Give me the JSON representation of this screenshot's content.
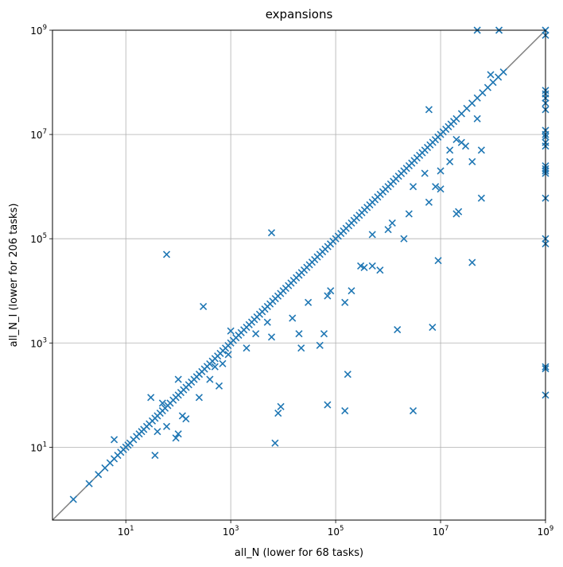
{
  "chart_data": {
    "type": "scatter",
    "title": "expansions",
    "xlabel": "all_N (lower for 68 tasks)",
    "ylabel": "all_N_I (lower for 206 tasks)",
    "xscale": "log",
    "yscale": "log",
    "xlim": [
      0.4,
      1000000000
    ],
    "ylim": [
      0.4,
      1000000000
    ],
    "grid": true,
    "marker": "x",
    "color": "#1f77b4",
    "diagonal_line": {
      "from": [
        0.4,
        0.4
      ],
      "to": [
        1000000000,
        1000000000
      ],
      "color": "#808080"
    },
    "x_ticks": [
      {
        "value": 10,
        "base": "10",
        "exp": "1"
      },
      {
        "value": 1000,
        "base": "10",
        "exp": "3"
      },
      {
        "value": 100000,
        "base": "10",
        "exp": "5"
      },
      {
        "value": 10000000,
        "base": "10",
        "exp": "7"
      },
      {
        "value": 1000000000,
        "base": "10",
        "exp": "9"
      }
    ],
    "y_ticks": [
      {
        "value": 10,
        "base": "10",
        "exp": "1"
      },
      {
        "value": 1000,
        "base": "10",
        "exp": "3"
      },
      {
        "value": 100000,
        "base": "10",
        "exp": "5"
      },
      {
        "value": 10000000,
        "base": "10",
        "exp": "7"
      },
      {
        "value": 1000000000,
        "base": "10",
        "exp": "9"
      }
    ],
    "points": [
      [
        1,
        1
      ],
      [
        2,
        2
      ],
      [
        3,
        3
      ],
      [
        4,
        4
      ],
      [
        5,
        5
      ],
      [
        6,
        6
      ],
      [
        7,
        7
      ],
      [
        8,
        8
      ],
      [
        9,
        9
      ],
      [
        10,
        10
      ],
      [
        11,
        11
      ],
      [
        12,
        12
      ],
      [
        14,
        14
      ],
      [
        16,
        16
      ],
      [
        18,
        18
      ],
      [
        20,
        20
      ],
      [
        22,
        22
      ],
      [
        25,
        25
      ],
      [
        28,
        28
      ],
      [
        32,
        32
      ],
      [
        36,
        36
      ],
      [
        40,
        40
      ],
      [
        45,
        45
      ],
      [
        50,
        50
      ],
      [
        56,
        56
      ],
      [
        63,
        63
      ],
      [
        70,
        70
      ],
      [
        80,
        80
      ],
      [
        90,
        90
      ],
      [
        100,
        100
      ],
      [
        112,
        112
      ],
      [
        126,
        126
      ],
      [
        141,
        141
      ],
      [
        158,
        158
      ],
      [
        178,
        178
      ],
      [
        200,
        200
      ],
      [
        224,
        224
      ],
      [
        251,
        251
      ],
      [
        282,
        282
      ],
      [
        316,
        316
      ],
      [
        355,
        355
      ],
      [
        398,
        398
      ],
      [
        447,
        447
      ],
      [
        501,
        501
      ],
      [
        562,
        562
      ],
      [
        631,
        631
      ],
      [
        708,
        708
      ],
      [
        794,
        794
      ],
      [
        891,
        891
      ],
      [
        1000,
        1000
      ],
      [
        1120,
        1120
      ],
      [
        1260,
        1260
      ],
      [
        1410,
        1410
      ],
      [
        1580,
        1580
      ],
      [
        1780,
        1780
      ],
      [
        2000,
        2000
      ],
      [
        2240,
        2240
      ],
      [
        2510,
        2510
      ],
      [
        2820,
        2820
      ],
      [
        3160,
        3160
      ],
      [
        3550,
        3550
      ],
      [
        3980,
        3980
      ],
      [
        4470,
        4470
      ],
      [
        5010,
        5010
      ],
      [
        5620,
        5620
      ],
      [
        6310,
        6310
      ],
      [
        7080,
        7080
      ],
      [
        7940,
        7940
      ],
      [
        8910,
        8910
      ],
      [
        10000,
        10000
      ],
      [
        11200,
        11200
      ],
      [
        12600,
        12600
      ],
      [
        14100,
        14100
      ],
      [
        15800,
        15800
      ],
      [
        17800,
        17800
      ],
      [
        20000,
        20000
      ],
      [
        22400,
        22400
      ],
      [
        25100,
        25100
      ],
      [
        28200,
        28200
      ],
      [
        31600,
        31600
      ],
      [
        35500,
        35500
      ],
      [
        39800,
        39800
      ],
      [
        44700,
        44700
      ],
      [
        50100,
        50100
      ],
      [
        56200,
        56200
      ],
      [
        63100,
        63100
      ],
      [
        70800,
        70800
      ],
      [
        79400,
        79400
      ],
      [
        89100,
        89100
      ],
      [
        100000,
        100000
      ],
      [
        112000,
        112000
      ],
      [
        126000,
        126000
      ],
      [
        141000,
        141000
      ],
      [
        158000,
        158000
      ],
      [
        178000,
        178000
      ],
      [
        200000,
        200000
      ],
      [
        224000,
        224000
      ],
      [
        251000,
        251000
      ],
      [
        282000,
        282000
      ],
      [
        316000,
        316000
      ],
      [
        355000,
        355000
      ],
      [
        398000,
        398000
      ],
      [
        447000,
        447000
      ],
      [
        501000,
        501000
      ],
      [
        562000,
        562000
      ],
      [
        631000,
        631000
      ],
      [
        708000,
        708000
      ],
      [
        794000,
        794000
      ],
      [
        891000,
        891000
      ],
      [
        1000000,
        1000000
      ],
      [
        1120000,
        1120000
      ],
      [
        1260000,
        1260000
      ],
      [
        1410000,
        1410000
      ],
      [
        1580000,
        1580000
      ],
      [
        1780000,
        1780000
      ],
      [
        2000000,
        2000000
      ],
      [
        2240000,
        2240000
      ],
      [
        2510000,
        2510000
      ],
      [
        2820000,
        2820000
      ],
      [
        3160000,
        3160000
      ],
      [
        3550000,
        3550000
      ],
      [
        3980000,
        3980000
      ],
      [
        4470000,
        4470000
      ],
      [
        5010000,
        5010000
      ],
      [
        5620000,
        5620000
      ],
      [
        6310000,
        6310000
      ],
      [
        7080000,
        7080000
      ],
      [
        7940000,
        7940000
      ],
      [
        8910000,
        8910000
      ],
      [
        10000000,
        10000000
      ],
      [
        11200000,
        11200000
      ],
      [
        12600000,
        12600000
      ],
      [
        14100000,
        14100000
      ],
      [
        15800000,
        15800000
      ],
      [
        17800000,
        17800000
      ],
      [
        20000000,
        20000000
      ],
      [
        25100000,
        25100000
      ],
      [
        31600000,
        31600000
      ],
      [
        39800000,
        39800000
      ],
      [
        50100000,
        50100000
      ],
      [
        63100000,
        63100000
      ],
      [
        79400000,
        79400000
      ],
      [
        100000000,
        100000000
      ],
      [
        126000000,
        126000000
      ],
      [
        158000000,
        158000000
      ],
      [
        30,
        90
      ],
      [
        50,
        70
      ],
      [
        100,
        200
      ],
      [
        1000,
        1700
      ],
      [
        36,
        7
      ],
      [
        40,
        20
      ],
      [
        60,
        25
      ],
      [
        90,
        15
      ],
      [
        100,
        18
      ],
      [
        120,
        40
      ],
      [
        140,
        35
      ],
      [
        250,
        90
      ],
      [
        400,
        200
      ],
      [
        500,
        350
      ],
      [
        700,
        400
      ],
      [
        900,
        600
      ],
      [
        2000,
        800
      ],
      [
        3000,
        1500
      ],
      [
        5000,
        2500
      ],
      [
        6000,
        1300
      ],
      [
        20000,
        1500
      ],
      [
        22000,
        800
      ],
      [
        50000,
        900
      ],
      [
        60000,
        1500
      ],
      [
        30000,
        6000
      ],
      [
        70000,
        8000
      ],
      [
        80000,
        10000
      ],
      [
        150000,
        6000
      ],
      [
        200000,
        10000
      ],
      [
        300000,
        30000
      ],
      [
        350000,
        28000
      ],
      [
        500000,
        30000
      ],
      [
        700000,
        25000
      ],
      [
        1000000,
        150000
      ],
      [
        1200000,
        200000
      ],
      [
        2000000,
        100000
      ],
      [
        2500000,
        300000
      ],
      [
        3000000,
        1000000
      ],
      [
        5000000,
        1800000
      ],
      [
        6000000,
        500000
      ],
      [
        8000000,
        1000000
      ],
      [
        10000000,
        2000000
      ],
      [
        15000000,
        5000000
      ],
      [
        20000000,
        8000000
      ],
      [
        30000000,
        6000000
      ],
      [
        50000000,
        20000000
      ],
      [
        6000,
        130000
      ],
      [
        600,
        150
      ],
      [
        15000,
        3000
      ],
      [
        500000,
        120000
      ],
      [
        6000000,
        30000000
      ],
      [
        300,
        5000
      ],
      [
        90000000,
        140000000
      ],
      [
        6,
        14
      ],
      [
        60,
        50000
      ],
      [
        7000,
        12
      ],
      [
        8000,
        45
      ],
      [
        9000,
        60
      ],
      [
        70000,
        65
      ],
      [
        150000,
        50
      ],
      [
        170000,
        250
      ],
      [
        3000000,
        50
      ],
      [
        1500000,
        1800
      ],
      [
        7000000,
        2000
      ],
      [
        40000000,
        35000
      ],
      [
        9000000,
        38000
      ],
      [
        20000000,
        300000
      ],
      [
        22000000,
        330000
      ],
      [
        60000000,
        600000
      ],
      [
        40000000,
        3000000
      ],
      [
        60000000,
        5000000
      ],
      [
        25000000,
        7000000
      ],
      [
        15000000,
        3000000
      ],
      [
        10000000,
        900000
      ],
      [
        50000000,
        1000000000
      ],
      [
        130000000,
        1000000000
      ],
      [
        1000000000,
        1000000000
      ],
      [
        1000000000,
        800000000
      ],
      [
        1000000000,
        70000000
      ],
      [
        1000000000,
        60000000
      ],
      [
        1000000000,
        50000000
      ],
      [
        1000000000,
        40000000
      ],
      [
        1000000000,
        30000000
      ],
      [
        1000000000,
        12000000
      ],
      [
        1000000000,
        10000000
      ],
      [
        1000000000,
        9000000
      ],
      [
        1000000000,
        7000000
      ],
      [
        1000000000,
        6000000
      ],
      [
        1000000000,
        2500000
      ],
      [
        1000000000,
        2200000
      ],
      [
        1000000000,
        2000000
      ],
      [
        1000000000,
        1800000
      ],
      [
        1000000000,
        600000
      ],
      [
        1000000000,
        100000
      ],
      [
        1000000000,
        80000
      ],
      [
        1000000000,
        350
      ],
      [
        1000000000,
        320
      ],
      [
        1000000000,
        100
      ]
    ]
  }
}
